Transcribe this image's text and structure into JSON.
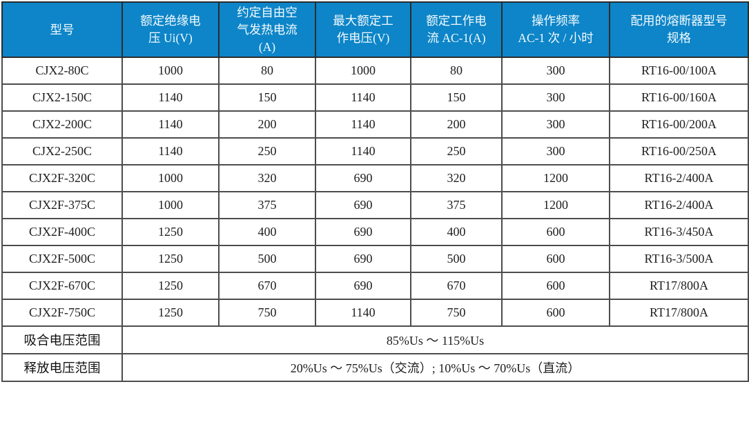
{
  "table": {
    "columns": [
      "型号",
      "额定绝缘电\n压 Ui(V)",
      "约定自由空\n气发热电流\n(A)",
      "最大额定工\n作电压(V)",
      "额定工作电\n流 AC-1(A)",
      "操作频率\nAC-1 次 / 小时",
      "配用的熔断器型号\n规格"
    ],
    "rows": [
      [
        "CJX2-80C",
        "1000",
        "80",
        "1000",
        "80",
        "300",
        "RT16-00/100A"
      ],
      [
        "CJX2-150C",
        "1140",
        "150",
        "1140",
        "150",
        "300",
        "RT16-00/160A"
      ],
      [
        "CJX2-200C",
        "1140",
        "200",
        "1140",
        "200",
        "300",
        "RT16-00/200A"
      ],
      [
        "CJX2-250C",
        "1140",
        "250",
        "1140",
        "250",
        "300",
        "RT16-00/250A"
      ],
      [
        "CJX2F-320C",
        "1000",
        "320",
        "690",
        "320",
        "1200",
        "RT16-2/400A"
      ],
      [
        "CJX2F-375C",
        "1000",
        "375",
        "690",
        "375",
        "1200",
        "RT16-2/400A"
      ],
      [
        "CJX2F-400C",
        "1250",
        "400",
        "690",
        "400",
        "600",
        "RT16-3/450A"
      ],
      [
        "CJX2F-500C",
        "1250",
        "500",
        "690",
        "500",
        "600",
        "RT16-3/500A"
      ],
      [
        "CJX2F-670C",
        "1250",
        "670",
        "690",
        "670",
        "600",
        "RT17/800A"
      ],
      [
        "CJX2F-750C",
        "1250",
        "750",
        "1140",
        "750",
        "600",
        "RT17/800A"
      ]
    ],
    "footer_rows": [
      {
        "label": "吸合电压范围",
        "value": "85%Us ～ 115%Us"
      },
      {
        "label": "释放电压范围",
        "value": "20%Us ～ 75%Us（交流）; 10%Us ～ 70%Us（直流）"
      }
    ]
  },
  "colors": {
    "header_bg": "#0D85C8",
    "header_text": "#F4FAFE",
    "grid_border": "#4C4C4C"
  }
}
